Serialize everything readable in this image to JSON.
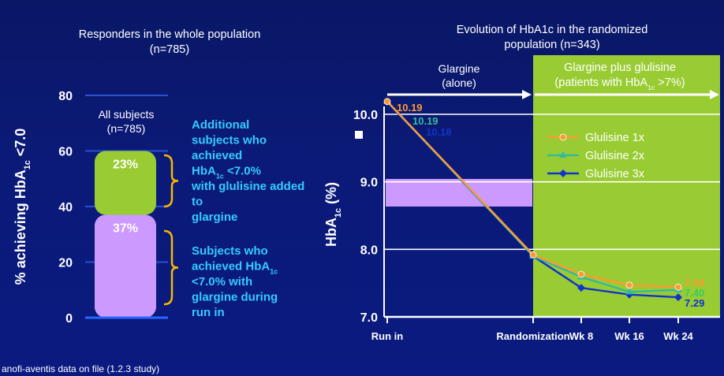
{
  "left": {
    "title_line1": "Responders in the whole population",
    "title_line2": "(n=785)",
    "ylabel_main": "% achieving HbA",
    "ylabel_sub": "1c",
    "ylabel_tail": " <7.0",
    "box_label_line1": "All subjects",
    "box_label_line2": "(n=785)",
    "annotation_top": [
      [
        "Additional"
      ],
      [
        "subjects who"
      ],
      [
        "achieved"
      ],
      [
        "HbA",
        "1c",
        " <7.0%"
      ],
      [
        "with glulisine added"
      ],
      [
        "to"
      ],
      [
        "glargine"
      ]
    ],
    "annotation_bottom": [
      [
        "Subjects who"
      ],
      [
        "achieved HbA",
        "1c"
      ],
      [
        "<7.0% with"
      ],
      [
        "glargine during"
      ],
      [
        "run in"
      ]
    ]
  },
  "right": {
    "title_line1": "Evolution of HbA1c in the randomized",
    "title_line2": "population (n=343)",
    "phase1_line1": "Glargine",
    "phase1_line2": "(alone)",
    "phase2_line1": "Glargine plus glulisine",
    "phase2_line2_a": "(patients with HbA",
    "phase2_line2_sub": "1c",
    "phase2_line2_b": " >7%)",
    "ylabel_main": "HbA",
    "ylabel_sub": "1c",
    "ylabel_tail": " (%)"
  },
  "footer": "anofi-aventis data on file (1.2.3 study)",
  "colors": {
    "background": "#0b1a78",
    "green": "#99cc33",
    "lavender": "#cc99ff",
    "brace": "#f5b800",
    "cyan_text": "#33ccff",
    "orange": "#ff9933",
    "teal": "#33bb99",
    "blue": "#1133cc"
  },
  "chart_data": [
    {
      "type": "bar",
      "title": "Responders in the whole population",
      "subtitle": "(n=785)",
      "ylabel": "% achieving HbA1c <7.0",
      "categories": [
        "All subjects (n=785)"
      ],
      "stacked": true,
      "series": [
        {
          "values": [
            37
          ],
          "label": "37%",
          "color": "#cc99ff"
        },
        {
          "values": [
            23
          ],
          "label": "23%",
          "color": "#99cc33"
        }
      ],
      "ylim": [
        0,
        80
      ],
      "yticks": [
        0,
        20,
        40,
        60,
        80
      ],
      "grid": true
    },
    {
      "type": "line",
      "title": "Evolution of HbA1c in the randomized population (n=343)",
      "ylabel": "HbA1c (%)",
      "categories": [
        "Run in",
        "Randomization",
        "Wk 8",
        "Wk 16",
        "Wk 24"
      ],
      "ylim": [
        7.0,
        10.0
      ],
      "yticks": [
        "7.0",
        "8.0",
        "9.0",
        "10.0"
      ],
      "grid": true,
      "legend_position": "center-right",
      "series": [
        {
          "name": "Glulisine 1x",
          "color": "#ff9933",
          "values": [
            10.19,
            7.92,
            7.63,
            7.47,
            7.44
          ],
          "start_label": "10.19",
          "end_label": "7.44"
        },
        {
          "name": "Glulisine 2x",
          "color": "#33bb99",
          "values": [
            10.19,
            7.9,
            7.59,
            7.37,
            7.4
          ],
          "start_label": "10.19",
          "end_label": "7.40"
        },
        {
          "name": "Glulisine 3x",
          "color": "#1133cc",
          "values": [
            10.18,
            7.9,
            7.43,
            7.33,
            7.29
          ],
          "start_label": "10.18",
          "end_label": "7.29"
        }
      ]
    }
  ]
}
